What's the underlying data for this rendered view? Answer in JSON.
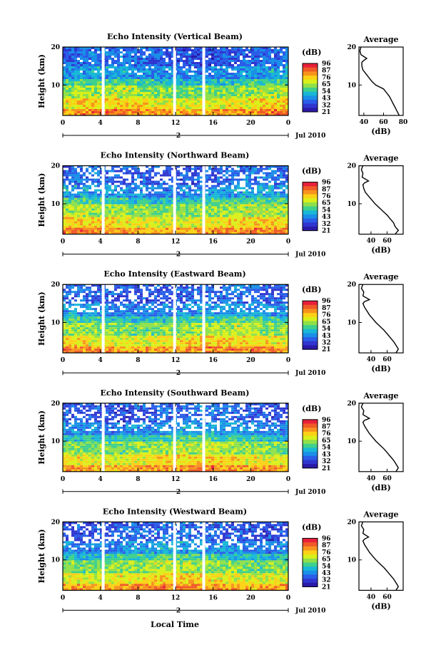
{
  "figure": {
    "date_label": "Jul 2010",
    "day_marker": "2",
    "x_axis_title": "Local Time",
    "colorbar_unit": "(dB)",
    "colorbar_ticks": [
      "96",
      "87",
      "76",
      "65",
      "54",
      "43",
      "32",
      "21"
    ],
    "colorbar_colors": [
      "#e8203a",
      "#f05a28",
      "#f7931e",
      "#fcd116",
      "#d9f01a",
      "#8fe04a",
      "#3fd08c",
      "#19b8d6",
      "#1a8fe8",
      "#2a5de8",
      "#3036d0",
      "#2a1aa8"
    ],
    "profile_title": "Average",
    "profile_xlabel": "(dB)"
  },
  "chart_data": [
    {
      "type": "heatmap",
      "title": "Echo Intensity (Vertical Beam)",
      "xlabel": "",
      "ylabel": "Height (km)",
      "xlim": [
        0,
        24
      ],
      "ylim": [
        2,
        20
      ],
      "x_ticks": [
        "0",
        "4",
        "8",
        "12",
        "16",
        "20",
        "0"
      ],
      "y_ticks": [
        "10",
        "20"
      ],
      "data_gaps_hour": [
        4.3,
        11.9,
        15.0
      ],
      "profile": {
        "title": "Average",
        "xlabel": "(dB)",
        "xlim": [
          35,
          80
        ],
        "x_ticks": [
          "40",
          "60",
          "80"
        ],
        "height": [
          20,
          19,
          18,
          17,
          16.5,
          16,
          15,
          14,
          13,
          12,
          11,
          10,
          9,
          8,
          7,
          6,
          5,
          4,
          3,
          2
        ],
        "value": [
          37,
          36,
          37,
          43,
          40,
          38,
          38,
          39,
          42,
          45,
          48,
          52,
          60,
          63,
          66,
          68,
          70,
          72,
          74,
          76
        ]
      }
    },
    {
      "type": "heatmap",
      "title": "Echo Intensity (Northward Beam)",
      "xlabel": "",
      "ylabel": "Height (km)",
      "xlim": [
        0,
        24
      ],
      "ylim": [
        2,
        20
      ],
      "x_ticks": [
        "0",
        "4",
        "8",
        "12",
        "16",
        "20",
        "0"
      ],
      "y_ticks": [
        "10",
        "20"
      ],
      "data_gaps_hour": [
        4.3,
        11.9,
        15.0
      ],
      "profile": {
        "title": "Average",
        "xlabel": "(dB)",
        "xlim": [
          25,
          80
        ],
        "x_ticks": [
          "40",
          "60"
        ],
        "height": [
          20,
          19,
          18,
          17,
          16,
          15.5,
          15,
          14,
          13,
          12,
          11,
          10,
          9,
          8,
          7,
          6,
          5,
          4,
          3,
          2
        ],
        "value": [
          30,
          28,
          30,
          29,
          37,
          32,
          30,
          31,
          33,
          37,
          41,
          45,
          50,
          55,
          60,
          64,
          68,
          70,
          74,
          70
        ]
      }
    },
    {
      "type": "heatmap",
      "title": "Echo Intensity (Eastward Beam)",
      "xlabel": "",
      "ylabel": "Height (km)",
      "xlim": [
        0,
        24
      ],
      "ylim": [
        2,
        20
      ],
      "x_ticks": [
        "0",
        "4",
        "8",
        "12",
        "16",
        "20",
        "0"
      ],
      "y_ticks": [
        "10",
        "20"
      ],
      "data_gaps_hour": [
        4.3,
        11.9,
        15.0
      ],
      "profile": {
        "title": "Average",
        "xlabel": "(dB)",
        "xlim": [
          25,
          80
        ],
        "x_ticks": [
          "40",
          "60"
        ],
        "height": [
          20,
          19,
          18,
          17,
          16,
          15.5,
          15,
          14,
          13,
          12,
          11,
          10,
          9,
          8,
          7,
          6,
          5,
          4,
          3,
          2
        ],
        "value": [
          30,
          28,
          31,
          30,
          38,
          32,
          30,
          32,
          35,
          38,
          42,
          46,
          51,
          56,
          60,
          64,
          68,
          71,
          74,
          71
        ]
      }
    },
    {
      "type": "heatmap",
      "title": "Echo Intensity (Southward Beam)",
      "xlabel": "",
      "ylabel": "Height (km)",
      "xlim": [
        0,
        24
      ],
      "ylim": [
        2,
        20
      ],
      "x_ticks": [
        "0",
        "4",
        "8",
        "12",
        "16",
        "20",
        "0"
      ],
      "y_ticks": [
        "10",
        "20"
      ],
      "data_gaps_hour": [
        4.3,
        11.9,
        15.0
      ],
      "profile": {
        "title": "Average",
        "xlabel": "(dB)",
        "xlim": [
          25,
          80
        ],
        "x_ticks": [
          "40",
          "60"
        ],
        "height": [
          20,
          19,
          18,
          17,
          16,
          15.5,
          15,
          14,
          13,
          12,
          11,
          10,
          9,
          8,
          7,
          6,
          5,
          4,
          3,
          2
        ],
        "value": [
          30,
          28,
          31,
          30,
          38,
          32,
          30,
          32,
          35,
          38,
          42,
          46,
          51,
          56,
          60,
          64,
          68,
          71,
          74,
          71
        ]
      }
    },
    {
      "type": "heatmap",
      "title": "Echo Intensity (Westward Beam)",
      "xlabel": "Local Time",
      "ylabel": "Height (km)",
      "xlim": [
        0,
        24
      ],
      "ylim": [
        2,
        20
      ],
      "x_ticks": [
        "0",
        "4",
        "8",
        "12",
        "16",
        "20",
        "0"
      ],
      "y_ticks": [
        "10",
        "20"
      ],
      "data_gaps_hour": [
        4.3,
        11.9,
        15.0
      ],
      "profile": {
        "title": "Average",
        "xlabel": "(dB)",
        "xlim": [
          25,
          80
        ],
        "x_ticks": [
          "40",
          "60"
        ],
        "height": [
          20,
          19,
          18,
          17,
          16,
          15.5,
          15,
          14,
          13,
          12,
          11,
          10,
          9,
          8,
          7,
          6,
          5,
          4,
          3,
          2
        ],
        "value": [
          30,
          28,
          31,
          30,
          37,
          32,
          30,
          32,
          35,
          38,
          42,
          46,
          51,
          56,
          60,
          64,
          68,
          71,
          74,
          71
        ]
      }
    }
  ]
}
